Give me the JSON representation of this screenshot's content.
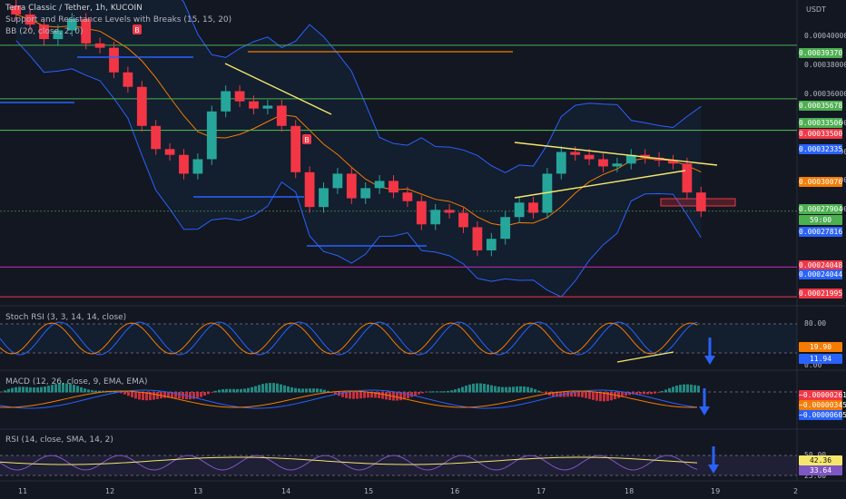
{
  "header": {
    "symbol": "Terra Classic / Tether, 1h, KUCOIN",
    "indicator_sr": "Support and Resistance Levels with Breaks (15, 15, 20)",
    "indicator_bb": "BB (20, close, 2, 0)",
    "currency": "USDT"
  },
  "price_axis": {
    "ticks": [
      "0.00040000",
      "0.00038000",
      "0.00036000",
      "0.00034000",
      "0.00032000",
      "0.00030000",
      "0.00028000"
    ]
  },
  "price_tags": [
    {
      "value": "0.00039370",
      "color": "#4caf50"
    },
    {
      "value": "0.00035678",
      "color": "#4caf50"
    },
    {
      "value": "0.00033506",
      "color": "#4caf50"
    },
    {
      "value": "0.00033500",
      "color": "#f23645"
    },
    {
      "value": "0.00032335",
      "color": "#2962ff"
    },
    {
      "value": "0.00030076",
      "color": "#f57c00"
    },
    {
      "value": "0.00027904",
      "color": "#4caf50"
    },
    {
      "value": "59:00",
      "color": "#4caf50"
    },
    {
      "value": "0.00027816",
      "color": "#2962ff"
    },
    {
      "value": "0.00024048",
      "color": "#f23645"
    },
    {
      "value": "0.00024044",
      "color": "#2962ff"
    },
    {
      "value": "0.00021995",
      "color": "#f23645"
    }
  ],
  "stoch": {
    "title": "Stoch RSI (3, 3, 14, 14, close)",
    "ticks": [
      "80.00",
      "0.00"
    ],
    "tags": [
      {
        "value": "19.90",
        "color": "#f57c00"
      },
      {
        "value": "11.94",
        "color": "#2962ff"
      }
    ]
  },
  "macd": {
    "title": "MACD (12, 26, close, 9, EMA, EMA)",
    "tags": [
      {
        "value": "−0.00000261",
        "color": "#f23645"
      },
      {
        "value": "−0.00000345",
        "color": "#f57c00"
      },
      {
        "value": "−0.00000605",
        "color": "#2962ff"
      }
    ]
  },
  "rsi": {
    "title": "RSI (14, close, SMA, 14, 2)",
    "ticks": [
      "50.00",
      "25.00"
    ],
    "tags": [
      {
        "value": "42.36",
        "color": "#f5e76c"
      },
      {
        "value": "33.64",
        "color": "#7e57c2"
      }
    ]
  },
  "date_axis": [
    "11",
    "12",
    "13",
    "14",
    "15",
    "16",
    "17",
    "18",
    "19",
    "2"
  ],
  "break_badges": [
    "B",
    "B"
  ],
  "colors": {
    "up": "#26a69a",
    "down": "#f23645",
    "bb": "#2962ff",
    "basis": "#f57c00",
    "support": "#2962ff",
    "resistance": "#f23645",
    "green_line": "#4caf50",
    "trendline": "#f5e76c",
    "arrow": "#2962ff",
    "purple": "#9c27b0"
  },
  "chart_data": {
    "type": "candlestick",
    "title": "Terra Classic / Tether, 1h, KUCOIN",
    "ylim": [
      0.000215,
      0.000425
    ],
    "x_labels": [
      "11",
      "12",
      "13",
      "14",
      "15",
      "16",
      "17",
      "18",
      "19",
      "2"
    ],
    "close_series": [
      0.000415,
      0.000408,
      0.000398,
      0.000404,
      0.000412,
      0.000395,
      0.000392,
      0.000375,
      0.000365,
      0.000338,
      0.000322,
      0.000318,
      0.000305,
      0.000315,
      0.000348,
      0.000362,
      0.000355,
      0.00035,
      0.000352,
      0.000338,
      0.000306,
      0.000282,
      0.000295,
      0.000305,
      0.000288,
      0.000295,
      0.0003,
      0.000292,
      0.000286,
      0.00027,
      0.00028,
      0.000278,
      0.000268,
      0.000252,
      0.00026,
      0.000275,
      0.000285,
      0.000278,
      0.000305,
      0.00032,
      0.000318,
      0.000315,
      0.00031,
      0.000312,
      0.000318,
      0.000316,
      0.000314,
      0.000312,
      0.000292,
      0.000279
    ],
    "horizontal_levels": [
      0.0003937,
      0.00035678,
      0.00033506,
      0.000335,
      0.00024048,
      0.00024044,
      0.00021995
    ],
    "last_price": 0.00027904
  }
}
